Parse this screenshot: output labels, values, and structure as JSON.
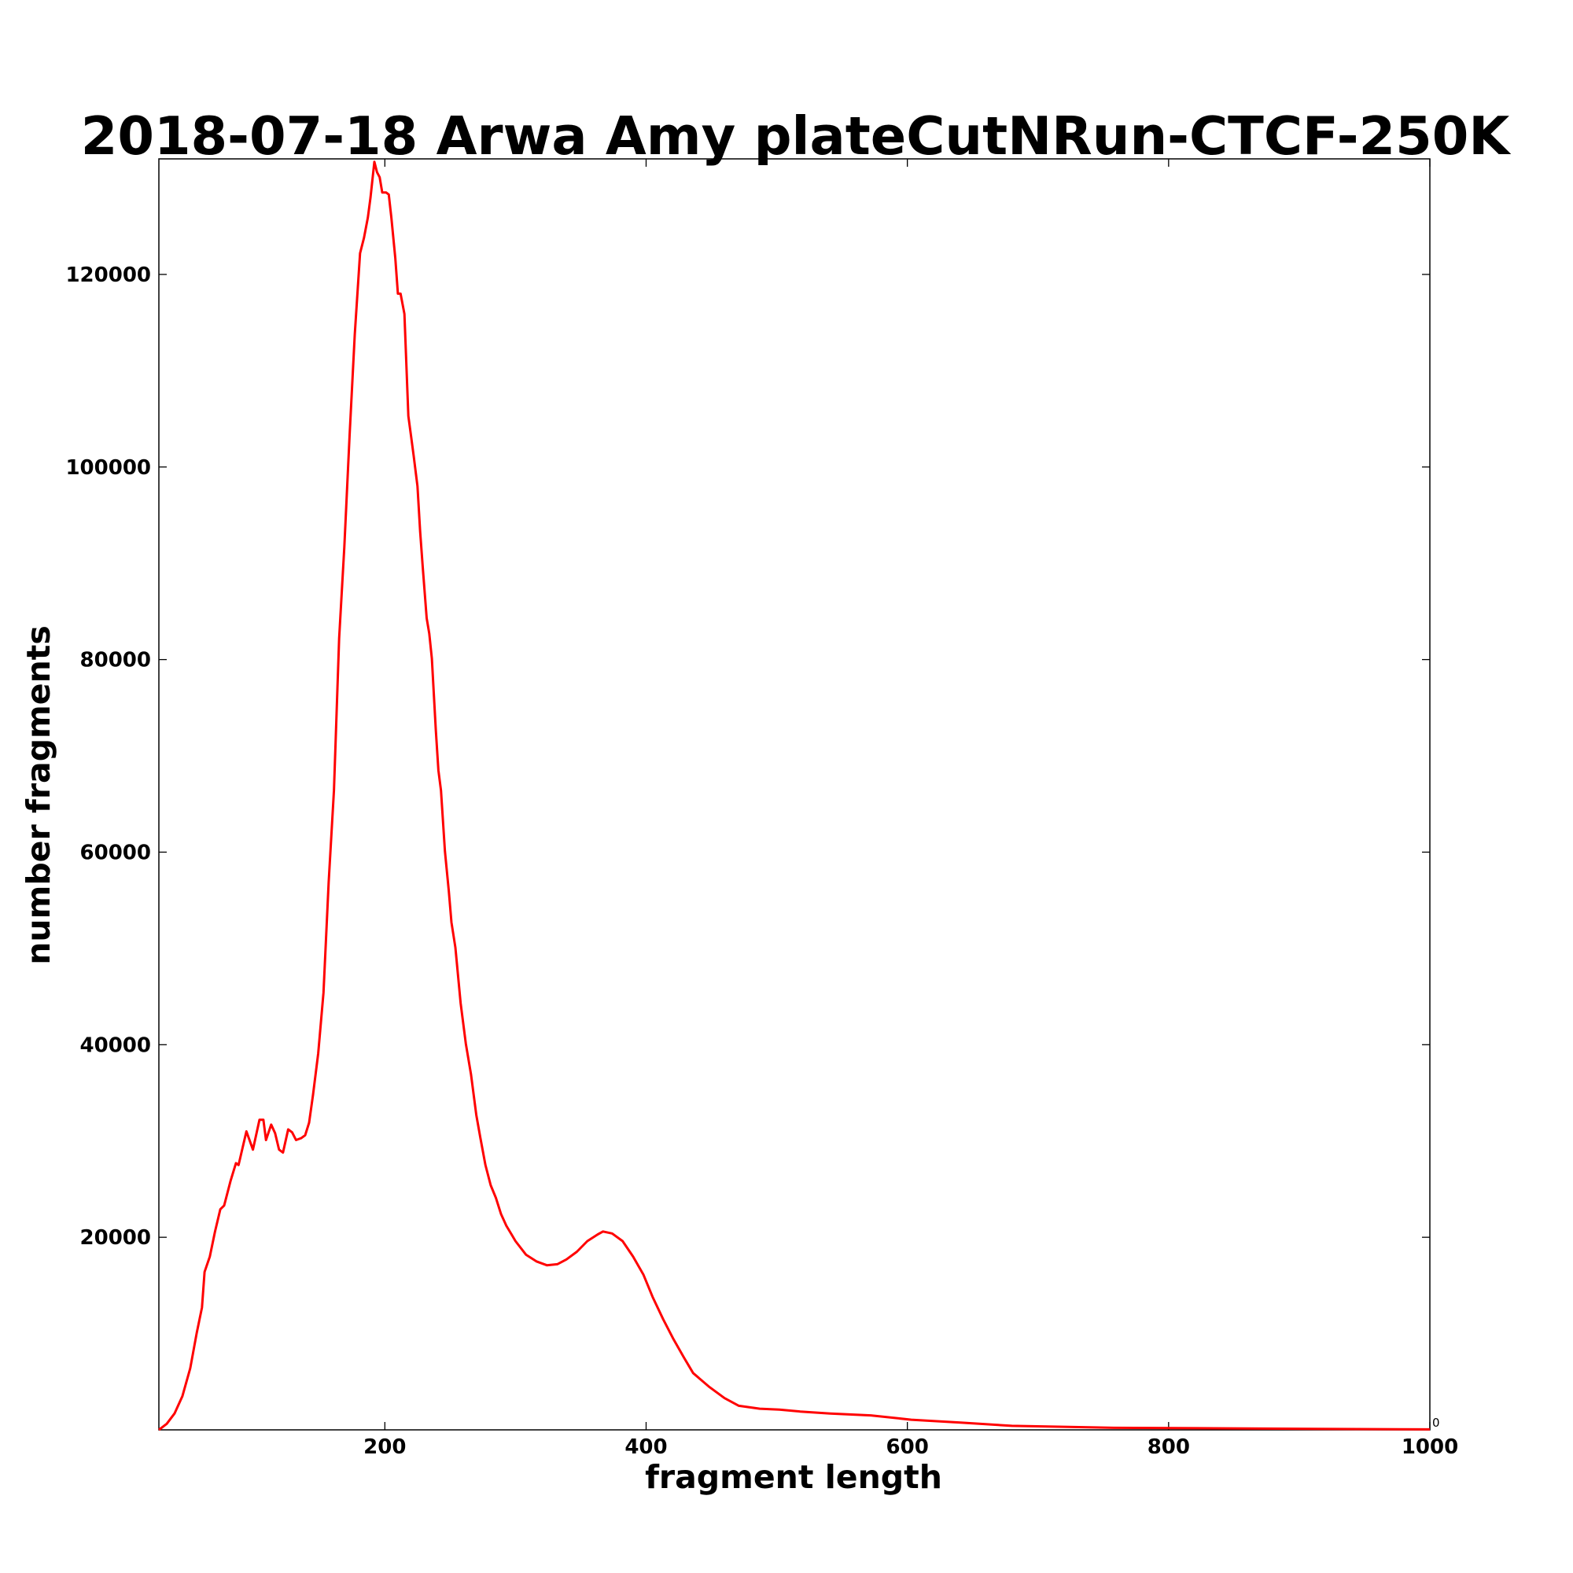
{
  "chart_data": {
    "type": "line",
    "title": "2018-07-18 Arwa Amy plateCutNRun-CTCF-250K",
    "x_label": "fragment length",
    "y_label": "number fragments",
    "annotation": "0",
    "color": "#ff0000",
    "x": [
      27,
      33,
      39,
      45,
      51,
      56,
      60,
      62,
      66,
      70,
      74,
      77,
      82,
      86,
      88,
      94,
      99,
      104,
      107,
      109,
      113,
      116,
      119,
      122,
      126,
      129,
      132,
      136,
      139,
      142,
      145,
      149,
      153,
      157,
      161,
      165,
      169,
      173,
      177,
      181,
      184,
      187,
      189,
      192,
      194,
      196,
      198,
      201,
      203,
      205,
      208,
      210,
      212,
      215,
      218,
      220,
      222,
      225,
      227,
      229,
      232,
      234,
      236,
      239,
      241,
      243,
      246,
      249,
      251,
      254,
      258,
      262,
      266,
      270,
      273,
      277,
      281,
      285,
      289,
      293,
      297,
      300,
      308,
      316,
      324,
      332,
      339,
      347,
      355,
      363,
      367,
      374,
      382,
      390,
      398,
      405,
      413,
      421,
      429,
      436,
      448,
      460,
      471,
      487,
      502,
      518,
      541,
      572,
      603,
      642,
      680,
      758,
      835,
      913,
      1000
    ],
    "values": [
      0,
      630,
      1700,
      3500,
      6400,
      10100,
      12700,
      16400,
      18000,
      20600,
      22900,
      23300,
      25900,
      27700,
      27500,
      31000,
      29100,
      32200,
      32200,
      30100,
      31700,
      30800,
      29100,
      28800,
      31200,
      30900,
      30100,
      30300,
      30600,
      31900,
      34800,
      39100,
      45400,
      56900,
      66400,
      82200,
      91700,
      103300,
      113800,
      122200,
      123800,
      125900,
      128000,
      131700,
      130600,
      130100,
      128500,
      128500,
      128300,
      125900,
      121700,
      118000,
      118000,
      115900,
      105300,
      103300,
      101200,
      98000,
      93300,
      89600,
      84300,
      82700,
      80100,
      72700,
      68500,
      66400,
      60100,
      55900,
      52700,
      50100,
      44300,
      40100,
      36900,
      32700,
      30400,
      27500,
      25400,
      24100,
      22400,
      21200,
      20300,
      19600,
      18200,
      17500,
      17100,
      17200,
      17700,
      18500,
      19600,
      20300,
      20600,
      20400,
      19600,
      18000,
      16100,
      13800,
      11500,
      9400,
      7500,
      5900,
      4500,
      3300,
      2500,
      2200,
      2100,
      1900,
      1700,
      1500,
      1050,
      740,
      420,
      210,
      160,
      105,
      50
    ],
    "xlim": [
      27,
      1000
    ],
    "ylim": [
      0,
      132000
    ],
    "xticks": [
      200,
      400,
      600,
      800,
      1000
    ],
    "yticks": [
      20000,
      40000,
      60000,
      80000,
      100000,
      120000
    ]
  }
}
